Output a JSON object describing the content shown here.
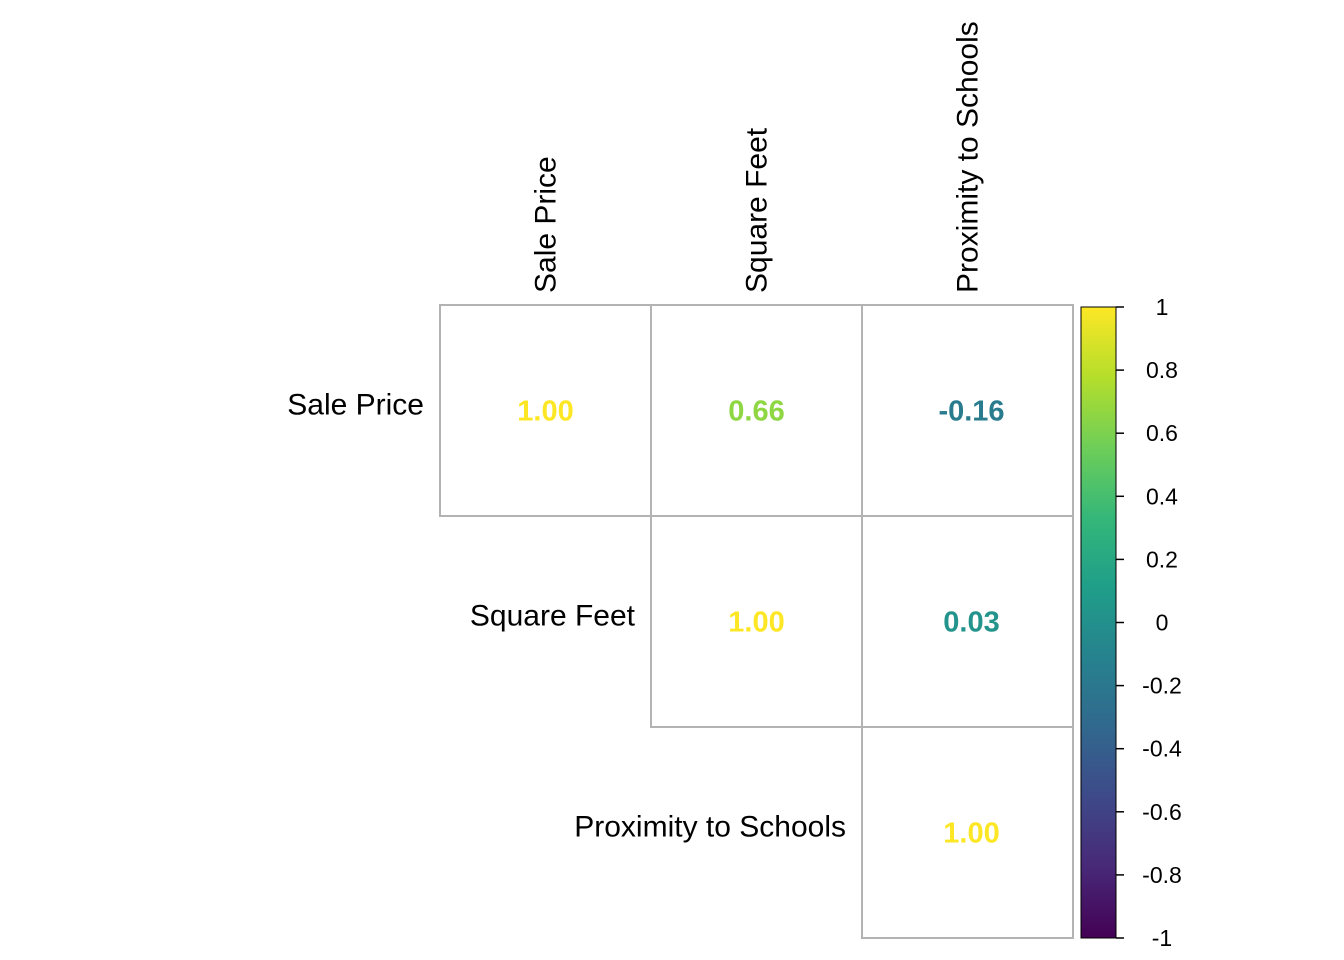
{
  "chart_data": {
    "type": "heatmap",
    "variant": "upper-triangle correlation matrix",
    "title": "",
    "variables": [
      "Sale Price",
      "Square Feet",
      "Proximity to Schools"
    ],
    "cells": [
      {
        "row": 0,
        "col": 0,
        "value": 1.0,
        "label": "1.00"
      },
      {
        "row": 0,
        "col": 1,
        "value": 0.66,
        "label": "0.66"
      },
      {
        "row": 0,
        "col": 2,
        "value": -0.16,
        "label": "-0.16"
      },
      {
        "row": 1,
        "col": 1,
        "value": 1.0,
        "label": "1.00"
      },
      {
        "row": 1,
        "col": 2,
        "value": 0.03,
        "label": "0.03"
      },
      {
        "row": 2,
        "col": 2,
        "value": 1.0,
        "label": "1.00"
      }
    ],
    "colorbar": {
      "range": [
        -1,
        1
      ],
      "colormap": "viridis",
      "ticks": [
        {
          "value": 1,
          "label": "1"
        },
        {
          "value": 0.8,
          "label": "0.8"
        },
        {
          "value": 0.6,
          "label": "0.6"
        },
        {
          "value": 0.4,
          "label": "0.4"
        },
        {
          "value": 0.2,
          "label": "0.2"
        },
        {
          "value": 0,
          "label": "0"
        },
        {
          "value": -0.2,
          "label": "-0.2"
        },
        {
          "value": -0.4,
          "label": "-0.4"
        },
        {
          "value": -0.6,
          "label": "-0.6"
        },
        {
          "value": -0.8,
          "label": "-0.8"
        },
        {
          "value": -1,
          "label": "-1"
        }
      ],
      "stops": [
        "#440154",
        "#482878",
        "#3e4989",
        "#31688e",
        "#26828e",
        "#1f9e89",
        "#35b779",
        "#6ece58",
        "#b5de2b",
        "#fde725"
      ]
    },
    "grid_color": "#b3b3b3"
  }
}
